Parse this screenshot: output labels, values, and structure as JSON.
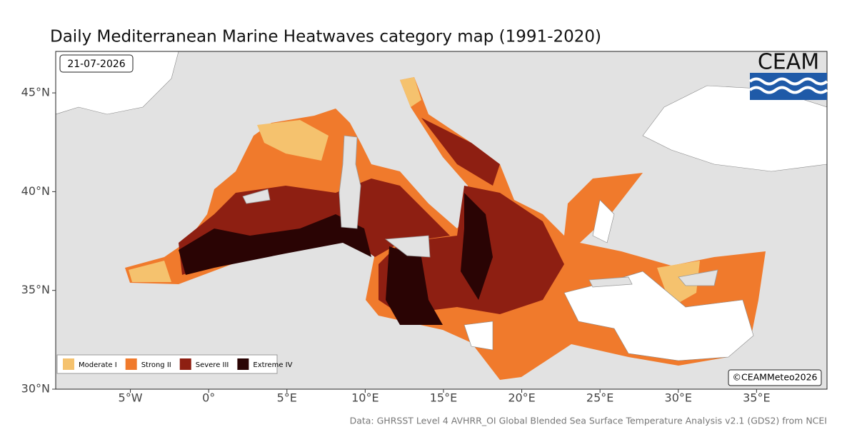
{
  "header": {
    "title": "Daily Mediterranean Marine Heatwaves category map (1991-2020)",
    "date": "21-07-2026"
  },
  "map": {
    "xlim": [
      -9.77,
      39.5
    ],
    "ylim": [
      30,
      47.1
    ],
    "xticks": [
      {
        "value": -5,
        "label": "5°W"
      },
      {
        "value": 0,
        "label": "0°"
      },
      {
        "value": 5,
        "label": "5°E"
      },
      {
        "value": 10,
        "label": "10°E"
      },
      {
        "value": 15,
        "label": "15°E"
      },
      {
        "value": 20,
        "label": "20°E"
      },
      {
        "value": 25,
        "label": "25°E"
      },
      {
        "value": 30,
        "label": "30°E"
      },
      {
        "value": 35,
        "label": "35°E"
      }
    ],
    "yticks": [
      {
        "value": 30,
        "label": "30°N"
      },
      {
        "value": 35,
        "label": "35°N"
      },
      {
        "value": 40,
        "label": "40°N"
      },
      {
        "value": 45,
        "label": "45°N"
      }
    ]
  },
  "legend": [
    {
      "label": "Moderate I",
      "color": "#f5c26e"
    },
    {
      "label": "Strong II",
      "color": "#f07a2c"
    },
    {
      "label": "Severe III",
      "color": "#8e1f12"
    },
    {
      "label": "Extreme IV",
      "color": "#2a0404"
    }
  ],
  "logo": "CEAM",
  "credit": "©CEAMMeteo2026",
  "source": "Data: GHRSST Level 4 AVHRR_OI Global Blended Sea Surface Temperature Analysis v2.1 (GDS2) from NCEI"
}
